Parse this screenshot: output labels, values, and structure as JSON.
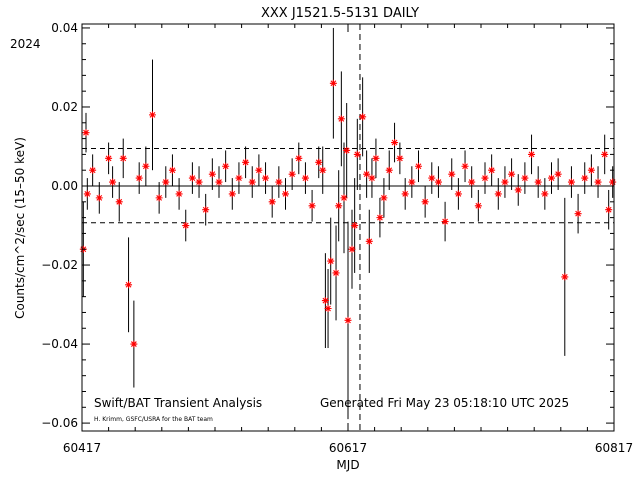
{
  "chart_data": {
    "type": "scatter",
    "title": "XXX J1521.5-5131 DAILY",
    "year_label": "2024",
    "xlabel": "MJD",
    "ylabel": "Counts/cm^2/sec (15-50 keV)",
    "ylabel_display": "Counts/cm^2/sec (15–50 keV)",
    "xlim": [
      60417,
      60817
    ],
    "ylim": [
      -0.062,
      0.041
    ],
    "xticks": [
      60417,
      60617,
      60817
    ],
    "xtick_labels": [
      "60417",
      "60617",
      "60817"
    ],
    "yticks": [
      -0.06,
      -0.04,
      -0.02,
      0.0,
      0.02,
      0.04
    ],
    "ytick_labels": [
      "−0.06",
      "−0.04",
      "−0.02",
      "0.00",
      "0.02",
      "0.04"
    ],
    "reference_lines": {
      "mean": 0.0,
      "upper": 0.0095,
      "lower": -0.0093,
      "dashed_x": 60626
    },
    "footer_left": "Swift/BAT Transient Analysis",
    "footer_right": "Generated Fri May 23 05:18:10 UTC 2025",
    "credit": "H. Krimm, GSFC/USRA for the BAT team",
    "colors": {
      "points": "#ff0000",
      "errorbars": "#000000",
      "axes": "#000000"
    },
    "series": [
      {
        "x": [
          60418,
          60420,
          60421,
          60425,
          60430,
          60437,
          60440,
          60445,
          60448,
          60452,
          60456,
          60460,
          60465,
          60470,
          60475,
          60480,
          60485,
          60490,
          60495,
          60500,
          60505,
          60510,
          60515,
          60520,
          60525,
          60530,
          60535,
          60540,
          60545,
          60550,
          60555,
          60560,
          60565,
          60570,
          60575,
          60580,
          60585,
          60590,
          60595,
          60598,
          60600,
          60602,
          60604,
          60606,
          60608,
          60610,
          60612,
          60614,
          60616,
          60617,
          60620,
          60622,
          60624,
          60628,
          60631,
          60633,
          60635,
          60638,
          60641,
          60644,
          60648,
          60652,
          60656,
          60660,
          60665,
          60670,
          60675,
          60680,
          60685,
          60690,
          60695,
          60700,
          60705,
          60710,
          60715,
          60720,
          60725,
          60730,
          60735,
          60740,
          60745,
          60750,
          60755,
          60760,
          60765,
          60770,
          60775,
          60780,
          60785,
          60790,
          60795,
          60800,
          60805,
          60810,
          60813,
          60816
        ],
        "y": [
          -0.016,
          0.0135,
          -0.002,
          0.004,
          -0.003,
          0.007,
          0.001,
          -0.004,
          0.007,
          -0.025,
          -0.04,
          0.002,
          0.005,
          0.018,
          -0.003,
          0.001,
          0.004,
          -0.002,
          -0.01,
          0.002,
          0.001,
          -0.006,
          0.003,
          0.001,
          0.005,
          -0.002,
          0.002,
          0.006,
          0.001,
          0.004,
          0.002,
          -0.004,
          0.001,
          -0.002,
          0.003,
          0.007,
          0.002,
          -0.005,
          0.006,
          0.004,
          -0.029,
          -0.031,
          -0.019,
          0.026,
          -0.022,
          -0.005,
          0.017,
          -0.003,
          0.009,
          -0.034,
          -0.016,
          -0.01,
          0.008,
          0.0175,
          0.003,
          -0.014,
          0.002,
          0.007,
          -0.008,
          -0.003,
          0.004,
          0.011,
          0.007,
          -0.002,
          0.001,
          0.005,
          -0.004,
          0.002,
          0.001,
          -0.009,
          0.003,
          -0.002,
          0.005,
          0.001,
          -0.005,
          0.002,
          0.004,
          -0.002,
          0.001,
          0.003,
          -0.001,
          0.002,
          0.008,
          0.001,
          -0.002,
          0.002,
          0.003,
          -0.023,
          0.001,
          -0.007,
          0.002,
          0.004,
          0.001,
          0.008,
          -0.006,
          0.001
        ],
        "yerr": [
          0.012,
          0.005,
          0.004,
          0.004,
          0.004,
          0.004,
          0.004,
          0.005,
          0.005,
          0.012,
          0.011,
          0.004,
          0.005,
          0.014,
          0.004,
          0.004,
          0.004,
          0.004,
          0.004,
          0.004,
          0.004,
          0.004,
          0.004,
          0.004,
          0.004,
          0.004,
          0.004,
          0.004,
          0.004,
          0.004,
          0.004,
          0.004,
          0.004,
          0.004,
          0.004,
          0.004,
          0.004,
          0.004,
          0.004,
          0.006,
          0.012,
          0.01,
          0.011,
          0.014,
          0.012,
          0.009,
          0.012,
          0.014,
          0.012,
          0.025,
          0.01,
          0.012,
          0.009,
          0.01,
          0.006,
          0.008,
          0.005,
          0.005,
          0.005,
          0.005,
          0.005,
          0.005,
          0.004,
          0.004,
          0.004,
          0.004,
          0.004,
          0.004,
          0.004,
          0.005,
          0.004,
          0.004,
          0.004,
          0.004,
          0.004,
          0.004,
          0.004,
          0.004,
          0.004,
          0.004,
          0.004,
          0.004,
          0.005,
          0.004,
          0.004,
          0.004,
          0.004,
          0.02,
          0.004,
          0.005,
          0.004,
          0.004,
          0.004,
          0.005,
          0.005,
          0.004
        ]
      }
    ]
  }
}
